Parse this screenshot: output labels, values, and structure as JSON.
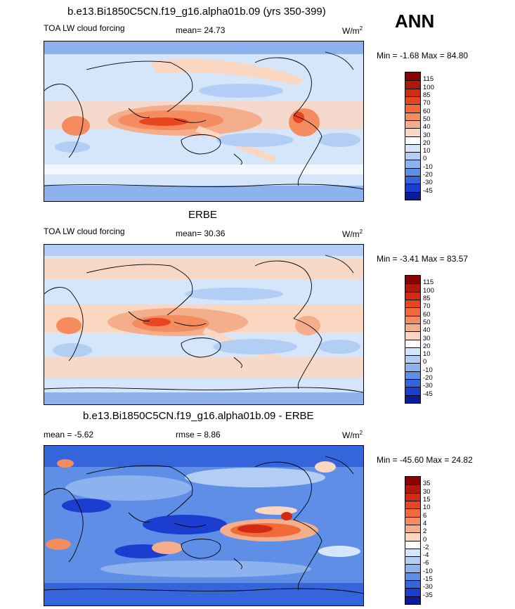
{
  "season": "ANN",
  "panels": [
    {
      "id": "model",
      "title": "b.e13.Bi1850C5CN.f19_g16.alpha01b.09 (yrs 350-399)",
      "variable": "TOA LW cloud forcing",
      "mean_label": "mean=",
      "mean_value": "24.73",
      "units": "W/m",
      "units_exp": "2",
      "minmax": "Min =  -1.68 Max =  84.80",
      "colorbar_labels": [
        "115",
        "100",
        "85",
        "70",
        "60",
        "50",
        "40",
        "30",
        "20",
        "10",
        "0",
        "-10",
        "-20",
        "-30",
        "-45"
      ],
      "colors": [
        "#8b0000",
        "#b0180c",
        "#d32a14",
        "#e8461e",
        "#f26a3a",
        "#f48c60",
        "#f5ae8c",
        "#fbd6c0",
        "#ffffff",
        "#d6e6fa",
        "#b2cef4",
        "#8db2ee",
        "#5f8ee6",
        "#3565da",
        "#1c3ed0",
        "#0c1a9c"
      ]
    },
    {
      "id": "obs",
      "title": "ERBE",
      "variable": "TOA LW cloud forcing",
      "mean_label": "mean=",
      "mean_value": "30.36",
      "units": "W/m",
      "units_exp": "2",
      "minmax": "Min =  -3.41 Max =  83.57",
      "colorbar_labels": [
        "115",
        "100",
        "85",
        "70",
        "60",
        "50",
        "40",
        "30",
        "20",
        "10",
        "0",
        "-10",
        "-20",
        "-30",
        "-45"
      ],
      "colors": [
        "#8b0000",
        "#b0180c",
        "#d32a14",
        "#e8461e",
        "#f26a3a",
        "#f48c60",
        "#f5ae8c",
        "#fbd6c0",
        "#ffffff",
        "#d6e6fa",
        "#b2cef4",
        "#8db2ee",
        "#5f8ee6",
        "#3565da",
        "#1c3ed0",
        "#0c1a9c"
      ]
    },
    {
      "id": "diff",
      "title": "b.e13.Bi1850C5CN.f19_g16.alpha01b.09 - ERBE",
      "mean_label": "mean =",
      "mean_value": "-5.62",
      "rmse_label": "rmse =",
      "rmse_value": "8.86",
      "units": "W/m",
      "units_exp": "2",
      "minmax": "Min = -45.60 Max =  24.82",
      "colorbar_labels": [
        "35",
        "30",
        "15",
        "10",
        "6",
        "4",
        "2",
        "0",
        "-2",
        "-4",
        "-6",
        "-10",
        "-15",
        "-30",
        "-35"
      ],
      "colors": [
        "#8b0000",
        "#b0180c",
        "#d32a14",
        "#e8461e",
        "#f26a3a",
        "#f48c60",
        "#f5ae8c",
        "#fbd6c0",
        "#ffffff",
        "#d6e6fa",
        "#b2cef4",
        "#8db2ee",
        "#5f8ee6",
        "#3565da",
        "#1c3ed0",
        "#0c1a9c"
      ]
    }
  ]
}
